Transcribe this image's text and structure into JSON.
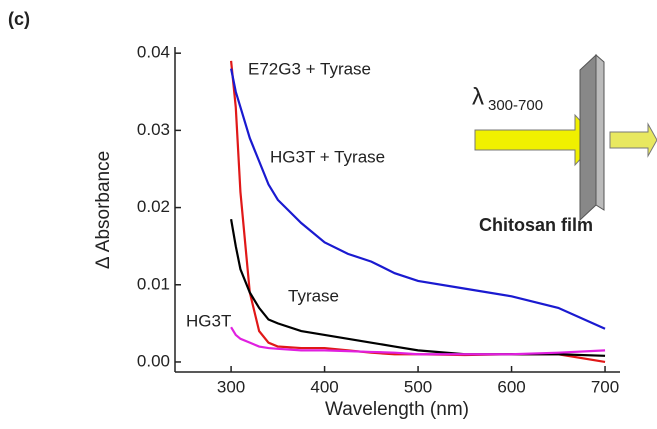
{
  "chart_data": {
    "type": "line",
    "panel": "(c)",
    "xlabel": "Wavelength (nm)",
    "ylabel": "Δ Absorbance",
    "x": [
      300,
      305,
      310,
      320,
      330,
      340,
      350,
      375,
      400,
      425,
      450,
      475,
      500,
      550,
      600,
      650,
      700
    ],
    "series": [
      {
        "name": "E72G3 + Tyrase",
        "color": "#e01818",
        "values": [
          0.039,
          0.033,
          0.022,
          0.009,
          0.004,
          0.0025,
          0.002,
          0.0018,
          0.0018,
          0.0015,
          0.0012,
          0.001,
          0.001,
          0.0009,
          0.001,
          0.001,
          0.0
        ]
      },
      {
        "name": "HG3T + Tyrase",
        "color": "#1a1ad0",
        "values": [
          0.038,
          0.035,
          0.033,
          0.029,
          0.026,
          0.023,
          0.021,
          0.018,
          0.0155,
          0.014,
          0.013,
          0.0115,
          0.0105,
          0.0095,
          0.0085,
          0.007,
          0.0043
        ]
      },
      {
        "name": "Tyrase",
        "color": "#000000",
        "values": [
          0.0185,
          0.015,
          0.012,
          0.009,
          0.007,
          0.0055,
          0.005,
          0.004,
          0.0035,
          0.003,
          0.0025,
          0.002,
          0.0015,
          0.001,
          0.001,
          0.001,
          0.0008
        ]
      },
      {
        "name": "HG3T",
        "color": "#e020e0",
        "values": [
          0.0045,
          0.0035,
          0.003,
          0.0025,
          0.002,
          0.0018,
          0.0017,
          0.0015,
          0.0015,
          0.0014,
          0.0013,
          0.0012,
          0.001,
          0.001,
          0.001,
          0.0012,
          0.0015
        ]
      }
    ],
    "xlim": [
      240,
      716
    ],
    "xticks": [
      300,
      400,
      500,
      600,
      700
    ],
    "ylim": [
      -0.0013,
      0.0408
    ],
    "yticks": [
      {
        "value": 0,
        "label": "0.00"
      },
      0.01,
      0.02,
      0.03,
      0.04
    ],
    "inset": {
      "symbol": "λ",
      "subscript": "300-700",
      "label": "Chitosan film"
    }
  }
}
